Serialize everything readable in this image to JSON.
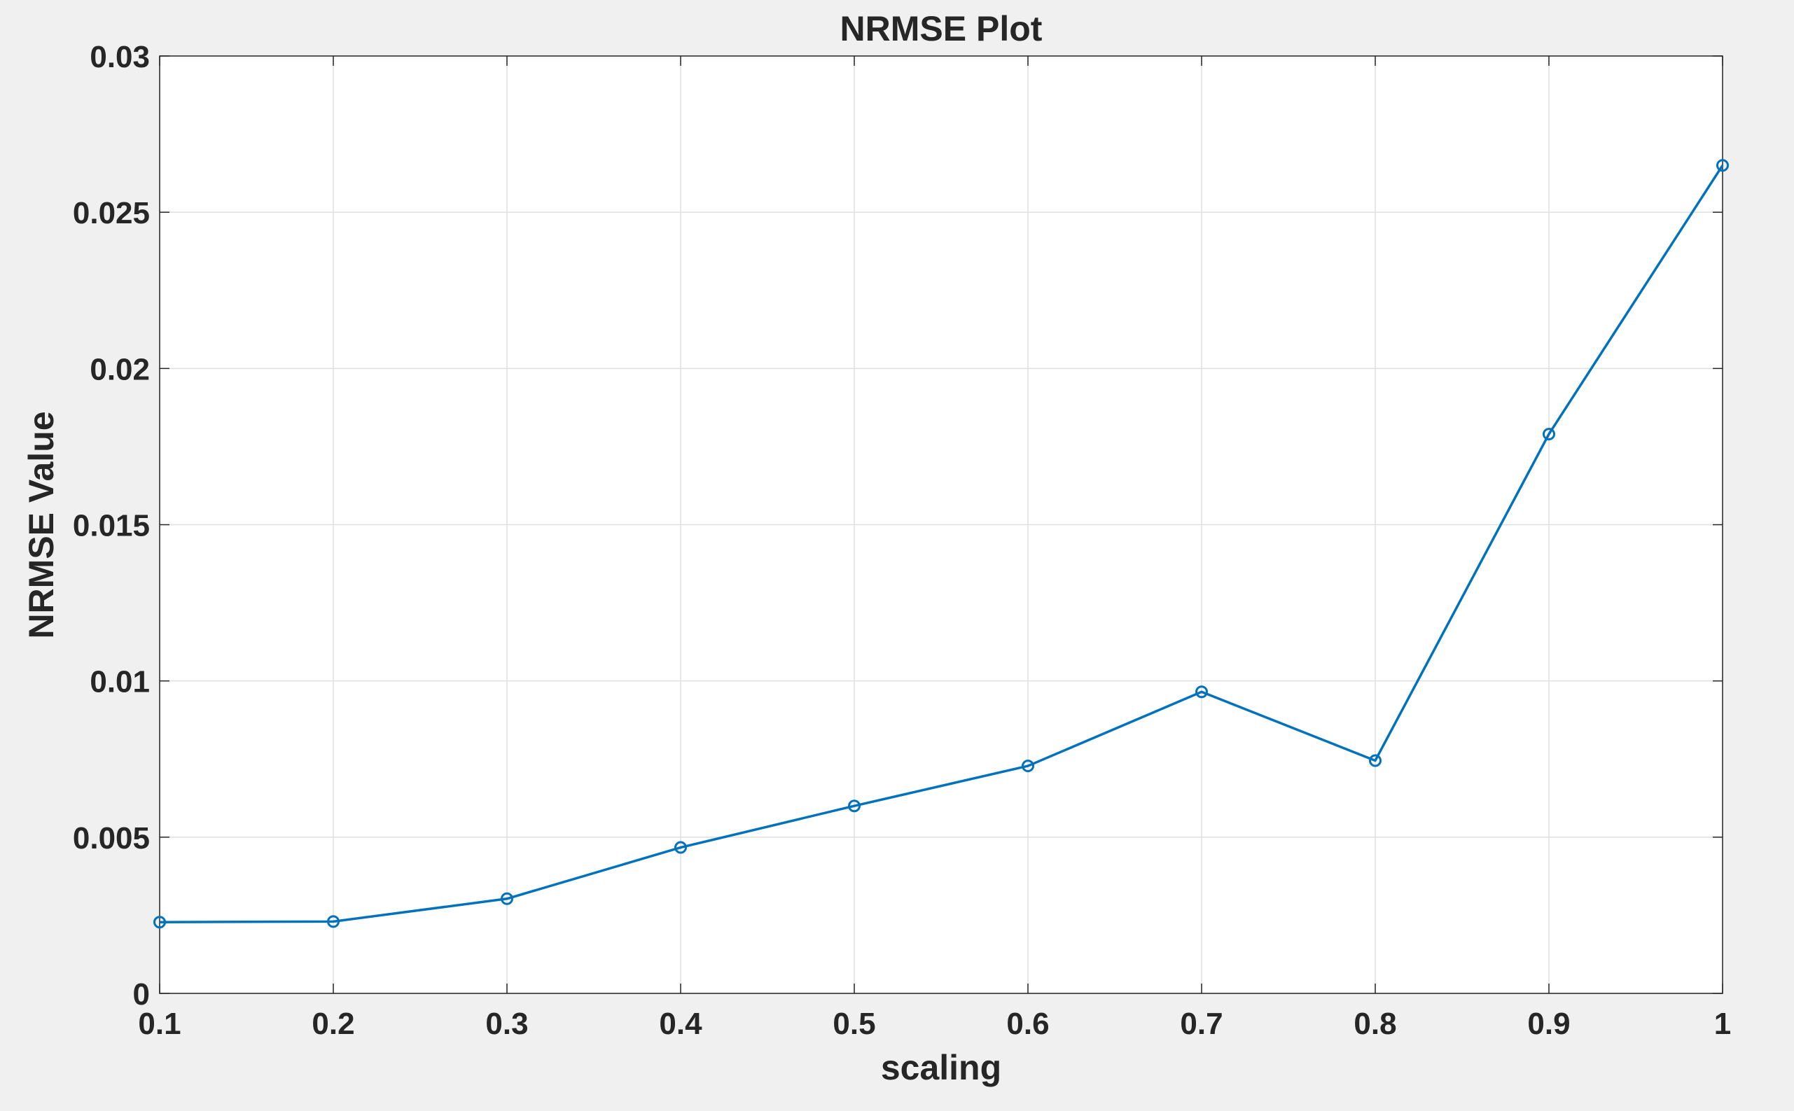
{
  "chart_data": {
    "type": "line",
    "title": "NRMSE Plot",
    "xlabel": "scaling",
    "ylabel": "NRMSE Value",
    "xlim": [
      0.1,
      1
    ],
    "ylim": [
      0,
      0.03
    ],
    "xticks": [
      0.1,
      0.2,
      0.3,
      0.4,
      0.5,
      0.6,
      0.7,
      0.8,
      0.9,
      1
    ],
    "xtick_labels": [
      "0.1",
      "0.2",
      "0.3",
      "0.4",
      "0.5",
      "0.6",
      "0.7",
      "0.8",
      "0.9",
      "1"
    ],
    "yticks": [
      0,
      0.005,
      0.01,
      0.015,
      0.02,
      0.025,
      0.03
    ],
    "ytick_labels": [
      "0",
      "0.005",
      "0.01",
      "0.015",
      "0.02",
      "0.025",
      "0.03"
    ],
    "grid": true,
    "marker": "o",
    "series": [
      {
        "name": "NRMSE",
        "color": "#0072bd",
        "x": [
          0.1,
          0.2,
          0.3,
          0.4,
          0.5,
          0.6,
          0.7,
          0.8,
          0.9,
          1
        ],
        "values": [
          0.00228,
          0.0023,
          0.00303,
          0.00467,
          0.006,
          0.00728,
          0.00965,
          0.00745,
          0.0179,
          0.0265
        ]
      }
    ]
  }
}
